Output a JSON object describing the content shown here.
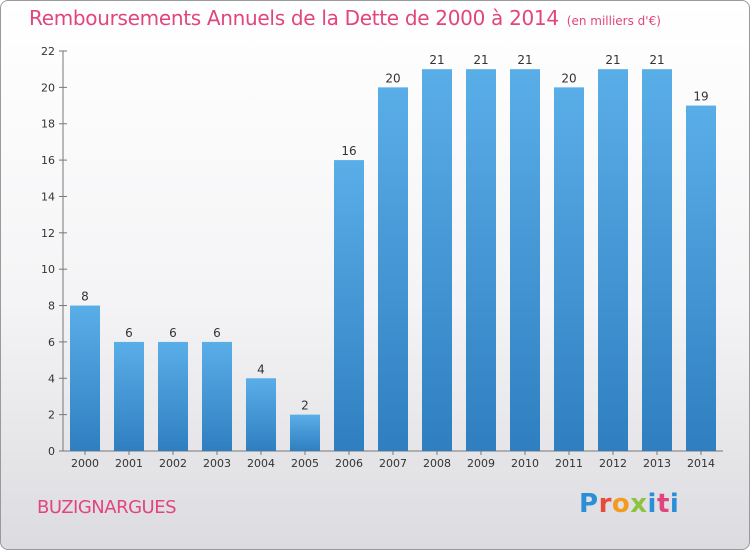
{
  "chart_data": {
    "type": "bar",
    "title": "Remboursements Annuels de la Dette de 2000 à 2014",
    "unit": "(en milliers d'€)",
    "categories": [
      "2000",
      "2001",
      "2002",
      "2003",
      "2004",
      "2005",
      "2006",
      "2007",
      "2008",
      "2009",
      "2010",
      "2011",
      "2012",
      "2013",
      "2014"
    ],
    "values": [
      8,
      6,
      6,
      6,
      4,
      2,
      16,
      20,
      21,
      21,
      21,
      20,
      21,
      21,
      19
    ],
    "ylim": [
      0,
      22
    ],
    "yticks": [
      0,
      2,
      4,
      6,
      8,
      10,
      12,
      14,
      16,
      18,
      20,
      22
    ],
    "grid": false,
    "bar_color": "#3e93d4"
  },
  "footer": {
    "commune": "BUZIGNARGUES",
    "logo_text": "Proxiti"
  }
}
